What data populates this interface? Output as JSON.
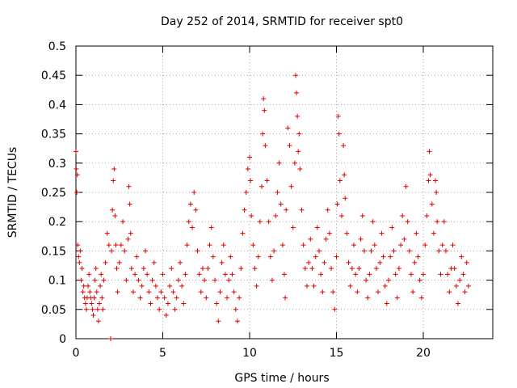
{
  "chart_data": {
    "type": "scatter",
    "title": "Day 252 of 2014, SRMTID for receiver spt0",
    "xlabel": "GPS time / hours",
    "ylabel": "SRMTID / TECUs",
    "xlim": [
      0,
      24
    ],
    "ylim": [
      0,
      0.5
    ],
    "xticks": [
      0,
      5,
      10,
      15,
      20
    ],
    "yticks": [
      0,
      0.05,
      0.1,
      0.15,
      0.2,
      0.25,
      0.3,
      0.35,
      0.4,
      0.45,
      0.5
    ],
    "ytick_labels": [
      "0",
      "0.05",
      "0.1",
      "0.15",
      "0.2",
      "0.25",
      "0.3",
      "0.35",
      "0.4",
      "0.45",
      "0.5"
    ],
    "xtick_labels": [
      "0",
      "5",
      "10",
      "15",
      "20"
    ],
    "grid": true,
    "marker": "+",
    "color": "#e00000",
    "series": [
      {
        "name": "SRMTID",
        "points": [
          [
            0.0,
            0.32
          ],
          [
            0.02,
            0.29
          ],
          [
            0.05,
            0.25
          ],
          [
            0.08,
            0.28
          ],
          [
            0.1,
            0.16
          ],
          [
            0.15,
            0.14
          ],
          [
            0.2,
            0.13
          ],
          [
            0.25,
            0.15
          ],
          [
            0.3,
            0.1
          ],
          [
            0.35,
            0.12
          ],
          [
            0.4,
            0.08
          ],
          [
            0.45,
            0.09
          ],
          [
            0.5,
            0.07
          ],
          [
            0.55,
            0.06
          ],
          [
            0.6,
            0.05
          ],
          [
            0.65,
            0.07
          ],
          [
            0.7,
            0.09
          ],
          [
            0.75,
            0.11
          ],
          [
            0.8,
            0.08
          ],
          [
            0.85,
            0.07
          ],
          [
            0.9,
            0.06
          ],
          [
            0.95,
            0.05
          ],
          [
            1.0,
            0.04
          ],
          [
            1.05,
            0.07
          ],
          [
            1.1,
            0.1
          ],
          [
            1.15,
            0.12
          ],
          [
            1.2,
            0.08
          ],
          [
            1.25,
            0.05
          ],
          [
            1.3,
            0.03
          ],
          [
            1.35,
            0.06
          ],
          [
            1.4,
            0.09
          ],
          [
            1.45,
            0.11
          ],
          [
            1.5,
            0.07
          ],
          [
            1.55,
            0.05
          ],
          [
            1.6,
            0.1
          ],
          [
            1.7,
            0.13
          ],
          [
            1.8,
            0.18
          ],
          [
            1.9,
            0.16
          ],
          [
            2.0,
            0.0
          ],
          [
            2.05,
            0.15
          ],
          [
            2.1,
            0.22
          ],
          [
            2.15,
            0.27
          ],
          [
            2.2,
            0.29
          ],
          [
            2.25,
            0.21
          ],
          [
            2.3,
            0.16
          ],
          [
            2.35,
            0.12
          ],
          [
            2.4,
            0.08
          ],
          [
            2.5,
            0.13
          ],
          [
            2.6,
            0.16
          ],
          [
            2.7,
            0.2
          ],
          [
            2.8,
            0.15
          ],
          [
            2.9,
            0.1
          ],
          [
            3.0,
            0.17
          ],
          [
            3.05,
            0.26
          ],
          [
            3.1,
            0.23
          ],
          [
            3.15,
            0.18
          ],
          [
            3.2,
            0.12
          ],
          [
            3.3,
            0.08
          ],
          [
            3.4,
            0.11
          ],
          [
            3.5,
            0.14
          ],
          [
            3.6,
            0.1
          ],
          [
            3.7,
            0.07
          ],
          [
            3.8,
            0.09
          ],
          [
            3.9,
            0.12
          ],
          [
            4.0,
            0.15
          ],
          [
            4.1,
            0.11
          ],
          [
            4.2,
            0.08
          ],
          [
            4.3,
            0.06
          ],
          [
            4.4,
            0.1
          ],
          [
            4.5,
            0.13
          ],
          [
            4.6,
            0.09
          ],
          [
            4.7,
            0.07
          ],
          [
            4.8,
            0.05
          ],
          [
            4.9,
            0.08
          ],
          [
            5.0,
            0.11
          ],
          [
            5.1,
            0.07
          ],
          [
            5.2,
            0.04
          ],
          [
            5.3,
            0.06
          ],
          [
            5.4,
            0.09
          ],
          [
            5.5,
            0.12
          ],
          [
            5.6,
            0.08
          ],
          [
            5.7,
            0.05
          ],
          [
            5.8,
            0.07
          ],
          [
            5.9,
            0.1
          ],
          [
            6.0,
            0.13
          ],
          [
            6.1,
            0.09
          ],
          [
            6.2,
            0.06
          ],
          [
            6.3,
            0.11
          ],
          [
            6.4,
            0.16
          ],
          [
            6.5,
            0.2
          ],
          [
            6.6,
            0.23
          ],
          [
            6.7,
            0.19
          ],
          [
            6.8,
            0.25
          ],
          [
            6.9,
            0.22
          ],
          [
            7.0,
            0.15
          ],
          [
            7.1,
            0.11
          ],
          [
            7.2,
            0.08
          ],
          [
            7.3,
            0.12
          ],
          [
            7.4,
            0.1
          ],
          [
            7.5,
            0.07
          ],
          [
            7.6,
            0.12
          ],
          [
            7.7,
            0.16
          ],
          [
            7.8,
            0.19
          ],
          [
            7.9,
            0.14
          ],
          [
            8.0,
            0.1
          ],
          [
            8.1,
            0.06
          ],
          [
            8.2,
            0.03
          ],
          [
            8.3,
            0.08
          ],
          [
            8.4,
            0.13
          ],
          [
            8.5,
            0.16
          ],
          [
            8.6,
            0.11
          ],
          [
            8.7,
            0.07
          ],
          [
            8.8,
            0.1
          ],
          [
            8.9,
            0.14
          ],
          [
            9.0,
            0.11
          ],
          [
            9.1,
            0.08
          ],
          [
            9.2,
            0.05
          ],
          [
            9.3,
            0.03
          ],
          [
            9.4,
            0.07
          ],
          [
            9.5,
            0.12
          ],
          [
            9.6,
            0.18
          ],
          [
            9.7,
            0.22
          ],
          [
            9.8,
            0.25
          ],
          [
            9.9,
            0.29
          ],
          [
            10.0,
            0.31
          ],
          [
            10.05,
            0.27
          ],
          [
            10.1,
            0.21
          ],
          [
            10.2,
            0.16
          ],
          [
            10.3,
            0.12
          ],
          [
            10.4,
            0.09
          ],
          [
            10.5,
            0.14
          ],
          [
            10.6,
            0.2
          ],
          [
            10.7,
            0.26
          ],
          [
            10.75,
            0.35
          ],
          [
            10.8,
            0.41
          ],
          [
            10.85,
            0.39
          ],
          [
            10.9,
            0.33
          ],
          [
            11.0,
            0.27
          ],
          [
            11.1,
            0.2
          ],
          [
            11.2,
            0.14
          ],
          [
            11.3,
            0.1
          ],
          [
            11.4,
            0.15
          ],
          [
            11.5,
            0.21
          ],
          [
            11.6,
            0.25
          ],
          [
            11.7,
            0.3
          ],
          [
            11.8,
            0.23
          ],
          [
            11.9,
            0.16
          ],
          [
            12.0,
            0.11
          ],
          [
            12.05,
            0.07
          ],
          [
            12.1,
            0.22
          ],
          [
            12.2,
            0.36
          ],
          [
            12.3,
            0.33
          ],
          [
            12.4,
            0.26
          ],
          [
            12.5,
            0.19
          ],
          [
            12.6,
            0.3
          ],
          [
            12.65,
            0.45
          ],
          [
            12.7,
            0.42
          ],
          [
            12.75,
            0.38
          ],
          [
            12.8,
            0.32
          ],
          [
            12.85,
            0.35
          ],
          [
            12.9,
            0.29
          ],
          [
            13.0,
            0.22
          ],
          [
            13.1,
            0.16
          ],
          [
            13.2,
            0.12
          ],
          [
            13.3,
            0.09
          ],
          [
            13.4,
            0.13
          ],
          [
            13.5,
            0.17
          ],
          [
            13.6,
            0.12
          ],
          [
            13.7,
            0.09
          ],
          [
            13.8,
            0.14
          ],
          [
            13.9,
            0.19
          ],
          [
            14.0,
            0.15
          ],
          [
            14.1,
            0.11
          ],
          [
            14.2,
            0.08
          ],
          [
            14.3,
            0.13
          ],
          [
            14.4,
            0.17
          ],
          [
            14.5,
            0.22
          ],
          [
            14.6,
            0.18
          ],
          [
            14.7,
            0.12
          ],
          [
            14.8,
            0.08
          ],
          [
            14.9,
            0.05
          ],
          [
            15.0,
            0.14
          ],
          [
            15.05,
            0.23
          ],
          [
            15.1,
            0.38
          ],
          [
            15.15,
            0.35
          ],
          [
            15.2,
            0.27
          ],
          [
            15.3,
            0.21
          ],
          [
            15.4,
            0.33
          ],
          [
            15.45,
            0.28
          ],
          [
            15.5,
            0.24
          ],
          [
            15.6,
            0.18
          ],
          [
            15.7,
            0.13
          ],
          [
            15.8,
            0.09
          ],
          [
            15.9,
            0.12
          ],
          [
            16.0,
            0.16
          ],
          [
            16.1,
            0.11
          ],
          [
            16.2,
            0.08
          ],
          [
            16.3,
            0.12
          ],
          [
            16.4,
            0.17
          ],
          [
            16.5,
            0.21
          ],
          [
            16.6,
            0.15
          ],
          [
            16.7,
            0.1
          ],
          [
            16.8,
            0.07
          ],
          [
            16.9,
            0.11
          ],
          [
            17.0,
            0.15
          ],
          [
            17.1,
            0.2
          ],
          [
            17.2,
            0.16
          ],
          [
            17.3,
            0.12
          ],
          [
            17.4,
            0.08
          ],
          [
            17.5,
            0.13
          ],
          [
            17.6,
            0.18
          ],
          [
            17.7,
            0.14
          ],
          [
            17.8,
            0.09
          ],
          [
            17.9,
            0.06
          ],
          [
            18.0,
            0.1
          ],
          [
            18.1,
            0.14
          ],
          [
            18.2,
            0.19
          ],
          [
            18.3,
            0.15
          ],
          [
            18.4,
            0.11
          ],
          [
            18.5,
            0.07
          ],
          [
            18.6,
            0.12
          ],
          [
            18.7,
            0.16
          ],
          [
            18.8,
            0.21
          ],
          [
            18.9,
            0.17
          ],
          [
            19.0,
            0.26
          ],
          [
            19.1,
            0.2
          ],
          [
            19.2,
            0.15
          ],
          [
            19.3,
            0.11
          ],
          [
            19.4,
            0.08
          ],
          [
            19.5,
            0.13
          ],
          [
            19.6,
            0.18
          ],
          [
            19.7,
            0.14
          ],
          [
            19.8,
            0.1
          ],
          [
            19.9,
            0.07
          ],
          [
            20.0,
            0.11
          ],
          [
            20.1,
            0.16
          ],
          [
            20.2,
            0.21
          ],
          [
            20.3,
            0.27
          ],
          [
            20.35,
            0.32
          ],
          [
            20.4,
            0.28
          ],
          [
            20.5,
            0.23
          ],
          [
            20.6,
            0.18
          ],
          [
            20.7,
            0.27
          ],
          [
            20.75,
            0.25
          ],
          [
            20.8,
            0.2
          ],
          [
            20.9,
            0.15
          ],
          [
            21.0,
            0.11
          ],
          [
            21.1,
            0.16
          ],
          [
            21.2,
            0.2
          ],
          [
            21.3,
            0.15
          ],
          [
            21.4,
            0.11
          ],
          [
            21.5,
            0.08
          ],
          [
            21.6,
            0.12
          ],
          [
            21.7,
            0.16
          ],
          [
            21.8,
            0.12
          ],
          [
            21.9,
            0.09
          ],
          [
            22.0,
            0.06
          ],
          [
            22.1,
            0.1
          ],
          [
            22.2,
            0.14
          ],
          [
            22.3,
            0.11
          ],
          [
            22.4,
            0.08
          ],
          [
            22.5,
            0.13
          ],
          [
            22.6,
            0.09
          ]
        ]
      }
    ]
  }
}
